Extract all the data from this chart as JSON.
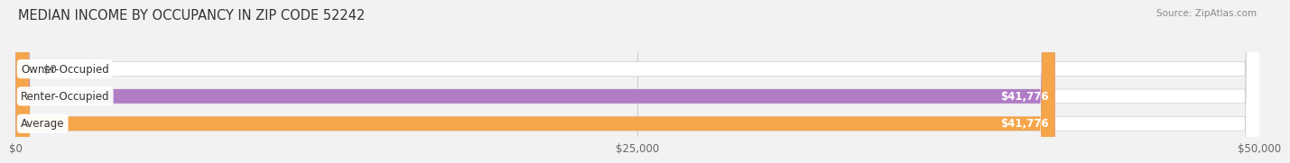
{
  "title": "MEDIAN INCOME BY OCCUPANCY IN ZIP CODE 52242",
  "source": "Source: ZipAtlas.com",
  "categories": [
    "Owner-Occupied",
    "Renter-Occupied",
    "Average"
  ],
  "values": [
    0,
    41776,
    41776
  ],
  "max_value": 50000,
  "bar_colors": [
    "#6dcdd0",
    "#b07cc6",
    "#f5a54a"
  ],
  "bar_height": 0.52,
  "background_color": "#f2f2f2",
  "track_color": "#e2e2e2",
  "value_labels": [
    "$0",
    "$41,776",
    "$41,776"
  ],
  "x_ticks": [
    0,
    25000,
    50000
  ],
  "x_tick_labels": [
    "$0",
    "$25,000",
    "$50,000"
  ],
  "title_fontsize": 10.5,
  "label_fontsize": 8.5,
  "tick_fontsize": 8.5,
  "source_fontsize": 7.5
}
